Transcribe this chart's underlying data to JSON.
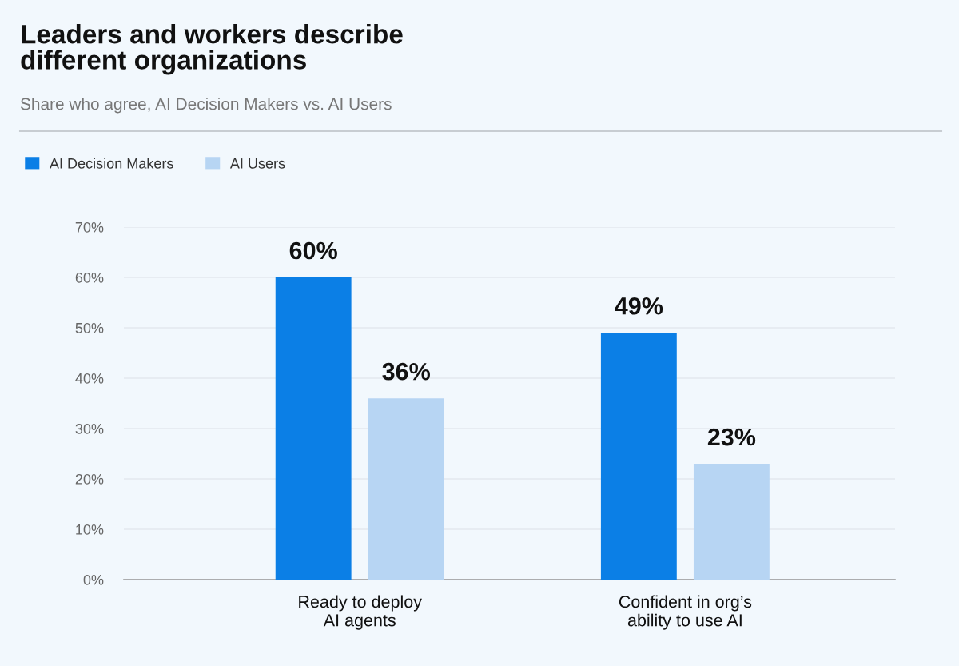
{
  "chart_data": {
    "type": "bar",
    "title": "Leaders and workers describe\ndifferent organizations",
    "subtitle": "Share who agree, AI Decision Makers vs. AI Users",
    "categories": [
      "Ready to deploy\nAI agents",
      "Confident in org’s\nability to use AI"
    ],
    "series": [
      {
        "name": "AI Decision Makers",
        "color": "#0b7fe6",
        "values": [
          60,
          49
        ],
        "value_labels": [
          "60%",
          "49%"
        ]
      },
      {
        "name": "AI Users",
        "color": "#b7d5f3",
        "values": [
          36,
          23
        ],
        "value_labels": [
          "36%",
          "23%"
        ]
      }
    ],
    "ylim": [
      0,
      70
    ],
    "yticks": [
      {
        "value": 0,
        "label": "0%"
      },
      {
        "value": 10,
        "label": "10%"
      },
      {
        "value": 20,
        "label": "20%"
      },
      {
        "value": 30,
        "label": "30%"
      },
      {
        "value": 40,
        "label": "40%"
      },
      {
        "value": 50,
        "label": "50%"
      },
      {
        "value": 60,
        "label": "60%"
      },
      {
        "value": 70,
        "label": "70%"
      }
    ],
    "grid": "y",
    "legend": "top left"
  }
}
